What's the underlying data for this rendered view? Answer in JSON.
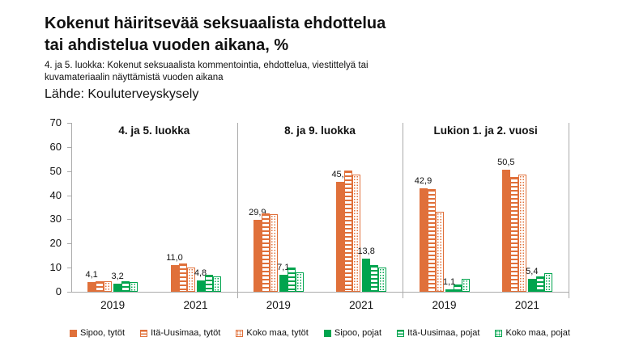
{
  "header": {
    "title_line1": "Kokenut häiritsevää seksuaalista ehdottelua",
    "title_line2": "tai ahdistelua vuoden aikana, %",
    "subtitle_line1": "4. ja 5. luokka: Kokenut seksuaalista kommentointia, ehdottelua, viestittelyä tai",
    "subtitle_line2": "kuvamateriaalin näyttämistä vuoden aikana",
    "source": "Lähde: Kouluterveyskysely"
  },
  "chart_data": {
    "type": "bar",
    "title": "Kokenut häiritsevää seksuaalista ehdottelua tai ahdistelua vuoden aikana, %",
    "ylabel": "",
    "xlabel": "",
    "ylim": [
      0,
      70
    ],
    "yticks": [
      0,
      10,
      20,
      30,
      40,
      50,
      60,
      70
    ],
    "grid": false,
    "legend_position": "bottom",
    "series": [
      "Sipoo, tytöt",
      "Itä-Uusimaa, tytöt",
      "Koko maa, tytöt",
      "Sipoo, pojat",
      "Itä-Uusimaa, pojat",
      "Koko maa, pojat"
    ],
    "series_styles": [
      "solid-orange",
      "striped-orange",
      "dotted-orange",
      "solid-green",
      "striped-green",
      "dotted-green"
    ],
    "colors": {
      "orange": "#E0703A",
      "green": "#00A44E",
      "axis": "#ABABAB",
      "text": "#111111"
    },
    "panels": [
      {
        "label": "4. ja 5. luokka",
        "groups": [
          {
            "year": "2019",
            "values": [
              4.1,
              4.4,
              4.4,
              3.2,
              4.2,
              4.1
            ],
            "labels": {
              "0": "4,1",
              "3": "3,2"
            }
          },
          {
            "year": "2021",
            "values": [
              11.0,
              11.8,
              9.9,
              4.8,
              7.0,
              6.2
            ],
            "labels": {
              "0": "11,0",
              "3": "4,8"
            }
          }
        ]
      },
      {
        "label": "8. ja 9. luokka",
        "groups": [
          {
            "year": "2019",
            "values": [
              29.9,
              32.4,
              32.2,
              7.1,
              10.0,
              8.0
            ],
            "labels": {
              "0": "29,9",
              "3": "7,1"
            }
          },
          {
            "year": "2021",
            "values": [
              45.7,
              50.1,
              48.6,
              13.8,
              11.2,
              10.2
            ],
            "labels": {
              "0": "45,7",
              "3": "13,8"
            }
          }
        ]
      },
      {
        "label": "Lukion 1. ja 2. vuosi",
        "groups": [
          {
            "year": "2019",
            "values": [
              42.9,
              42.6,
              33.0,
              1.1,
              2.9,
              5.3
            ],
            "labels": {
              "0": "42,9",
              "3": "1,1"
            }
          },
          {
            "year": "2021",
            "values": [
              50.5,
              47.5,
              48.5,
              5.4,
              6.3,
              7.7
            ],
            "labels": {
              "0": "50,5",
              "3": "5,4"
            }
          }
        ]
      }
    ]
  }
}
